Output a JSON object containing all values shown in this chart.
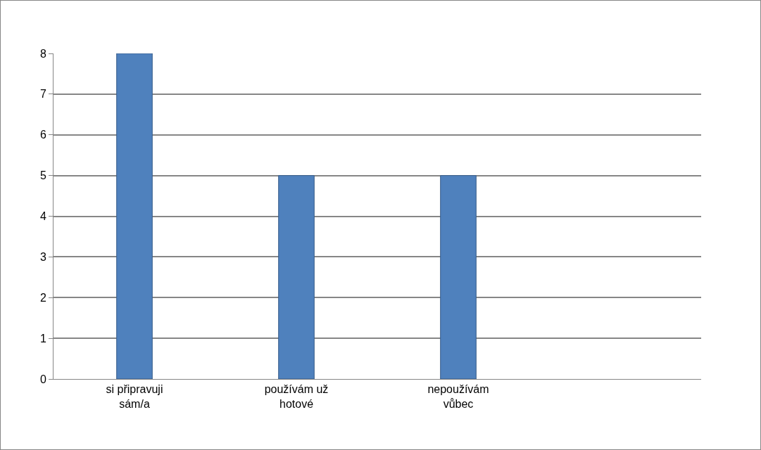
{
  "chart_data": {
    "type": "bar",
    "categories": [
      "si připravuji sám/a",
      "používám už hotové",
      "nepoužívám vůbec",
      null
    ],
    "values": [
      8,
      5,
      5,
      null
    ],
    "color": "#4f81bd",
    "ylim": [
      0,
      8
    ],
    "yticks": [
      0,
      1,
      2,
      3,
      4,
      5,
      6,
      7,
      8
    ],
    "grid": "y",
    "legend": false
  }
}
